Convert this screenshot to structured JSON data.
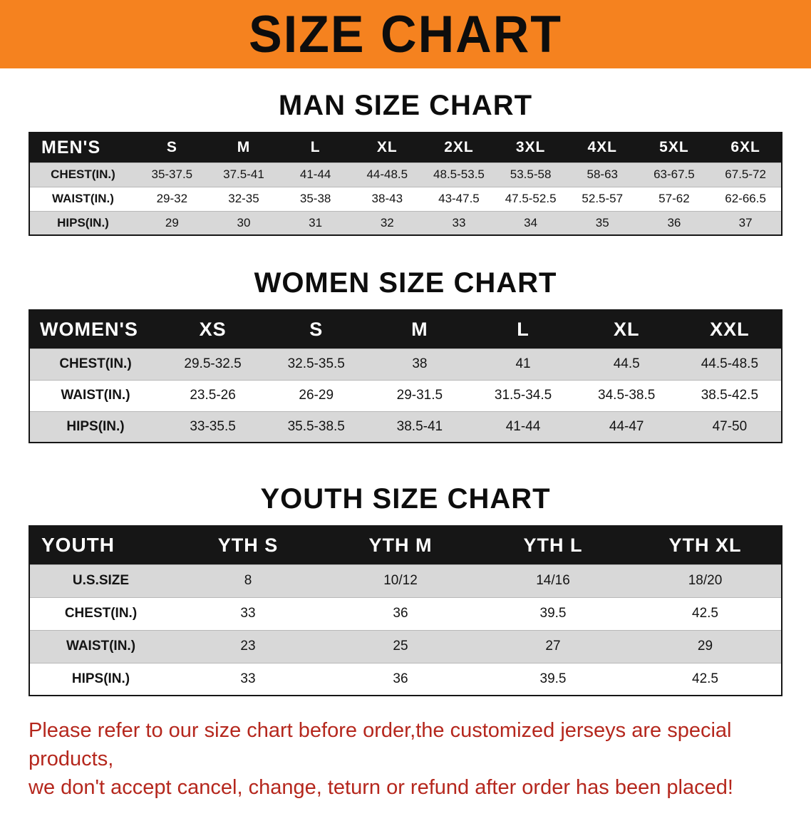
{
  "banner": {
    "title": "SIZE CHART"
  },
  "sections": [
    {
      "id": "men",
      "heading": "MAN SIZE CHART",
      "table": {
        "header": [
          "MEN'S",
          "S",
          "M",
          "L",
          "XL",
          "2XL",
          "3XL",
          "4XL",
          "5XL",
          "6XL"
        ],
        "rows": [
          [
            "CHEST(IN.)",
            "35-37.5",
            "37.5-41",
            "41-44",
            "44-48.5",
            "48.5-53.5",
            "53.5-58",
            "58-63",
            "63-67.5",
            "67.5-72"
          ],
          [
            "WAIST(IN.)",
            "29-32",
            "32-35",
            "35-38",
            "38-43",
            "43-47.5",
            "47.5-52.5",
            "52.5-57",
            "57-62",
            "62-66.5"
          ],
          [
            "HIPS(IN.)",
            "29",
            "30",
            "31",
            "32",
            "33",
            "34",
            "35",
            "36",
            "37"
          ]
        ]
      }
    },
    {
      "id": "women",
      "heading": "WOMEN SIZE CHART",
      "table": {
        "header": [
          "WOMEN'S",
          "XS",
          "S",
          "M",
          "L",
          "XL",
          "XXL"
        ],
        "rows": [
          [
            "CHEST(IN.)",
            "29.5-32.5",
            "32.5-35.5",
            "38",
            "41",
            "44.5",
            "44.5-48.5"
          ],
          [
            "WAIST(IN.)",
            "23.5-26",
            "26-29",
            "29-31.5",
            "31.5-34.5",
            "34.5-38.5",
            "38.5-42.5"
          ],
          [
            "HIPS(IN.)",
            "33-35.5",
            "35.5-38.5",
            "38.5-41",
            "41-44",
            "44-47",
            "47-50"
          ]
        ]
      }
    },
    {
      "id": "youth",
      "heading": "YOUTH SIZE CHART",
      "table": {
        "header": [
          "YOUTH",
          "YTH S",
          "YTH M",
          "YTH L",
          "YTH XL"
        ],
        "rows": [
          [
            "U.S.SIZE",
            "8",
            "10/12",
            "14/16",
            "18/20"
          ],
          [
            "CHEST(IN.)",
            "33",
            "36",
            "39.5",
            "42.5"
          ],
          [
            "WAIST(IN.)",
            "23",
            "25",
            "27",
            "29"
          ],
          [
            "HIPS(IN.)",
            "33",
            "36",
            "39.5",
            "42.5"
          ]
        ]
      }
    }
  ],
  "footer": {
    "line1": "Please refer to our size chart before order,the customized jerseys are special products,",
    "line2": "we don't accept cancel, change, teturn or refund after order has been placed!"
  },
  "colors": {
    "banner_bg": "#f5821f",
    "table_header_bg": "#161616",
    "row_alt_bg": "#d8d8d8",
    "footer_text": "#b5271d"
  }
}
